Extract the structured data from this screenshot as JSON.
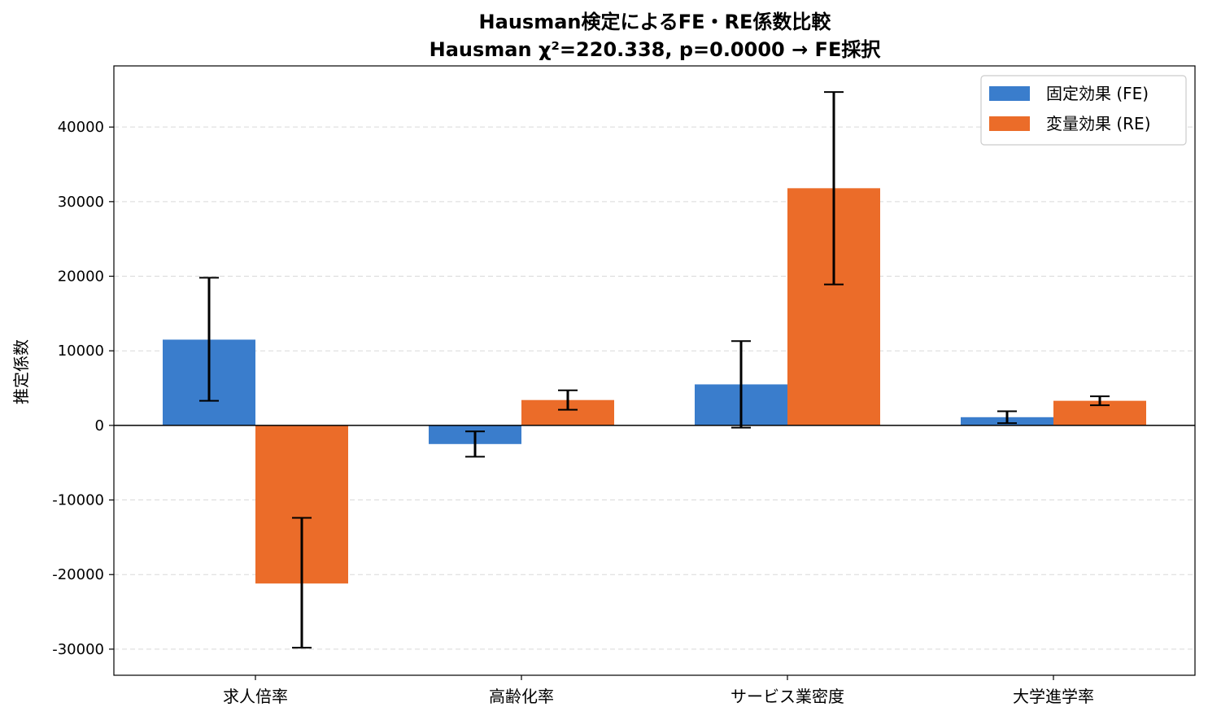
{
  "chart_data": {
    "type": "bar",
    "title": "Hausman検定によるFE・RE係数比較",
    "subtitle": "Hausman χ²=220.338, p=0.0000 → FE採択",
    "xlabel": "",
    "ylabel": "推定係数",
    "categories": [
      "求人倍率",
      "高齢化率",
      "サービス業密度",
      "大学進学率"
    ],
    "series": [
      {
        "name": "固定効果 (FE)",
        "color": "#3a7dcc",
        "values": [
          11500,
          -2500,
          5500,
          1100
        ],
        "err_low": [
          3300,
          -4200,
          -300,
          300
        ],
        "err_high": [
          19800,
          -800,
          11300,
          1900
        ]
      },
      {
        "name": "変量効果 (RE)",
        "color": "#eb6c29",
        "values": [
          -21200,
          3400,
          31800,
          3300
        ],
        "err_low": [
          -29800,
          2100,
          18900,
          2700
        ],
        "err_high": [
          -12400,
          4700,
          44700,
          3900
        ]
      }
    ],
    "ylim": [
      -33500,
      48200
    ],
    "yticks": [
      40000,
      30000,
      20000,
      10000,
      0,
      -10000,
      -20000,
      -30000
    ],
    "grid": true,
    "legend": "top-right"
  }
}
